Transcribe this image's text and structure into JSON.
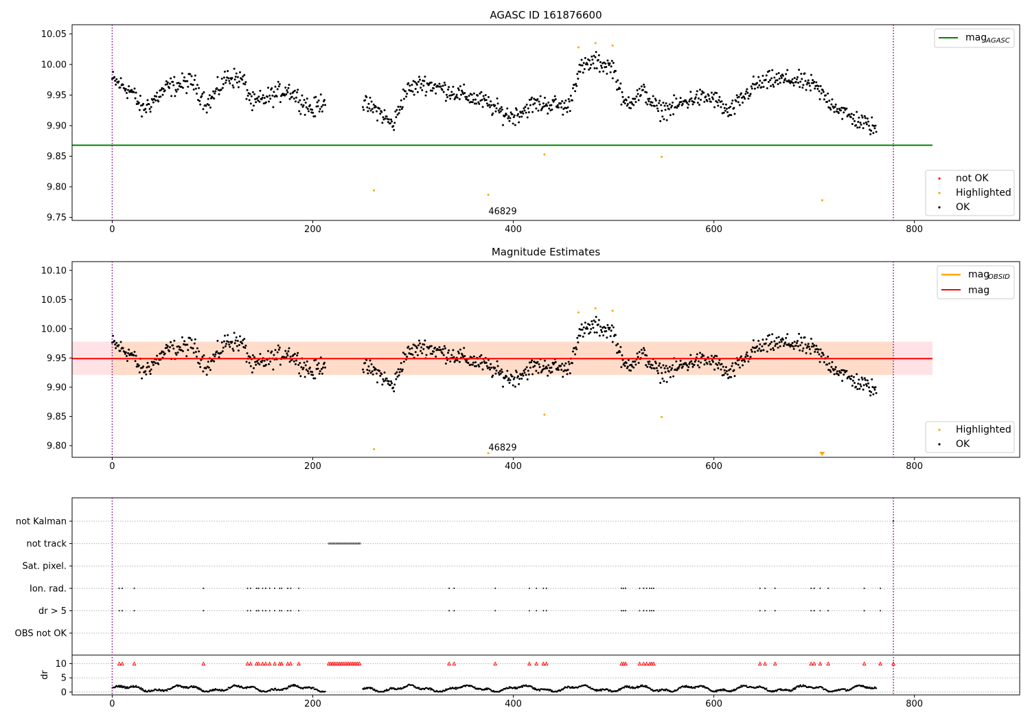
{
  "chart_data": [
    {
      "type": "scatter",
      "title": "AGASC ID 161876600",
      "xlim": [
        -40,
        905
      ],
      "ylim": [
        9.745,
        10.065
      ],
      "x_ticks": [
        "0",
        "200",
        "400",
        "600",
        "800"
      ],
      "y_ticks": [
        "9.75",
        "9.80",
        "9.85",
        "9.90",
        "9.95",
        "10.00",
        "10.05"
      ],
      "reference_lines": [
        {
          "name": "mag_AGASC",
          "legend_label": "mag",
          "legend_sub": "AGASC",
          "y": 9.868,
          "x_range": [
            -40,
            818
          ],
          "color": "#008000"
        }
      ],
      "vertical_lines": {
        "x": [
          0,
          779
        ],
        "color": "#800080",
        "style": "dotted"
      },
      "series": [
        {
          "name": "not OK",
          "color": "#ff0000",
          "points": []
        },
        {
          "name": "Highlighted",
          "color": "#ffa500",
          "points": [
            [
              261,
              9.794
            ],
            [
              375,
              9.787
            ],
            [
              431,
              9.853
            ],
            [
              465,
              10.028
            ],
            [
              482,
              10.035
            ],
            [
              499,
              10.031
            ],
            [
              548,
              9.849
            ],
            [
              708,
              9.778
            ]
          ]
        },
        {
          "name": "OK",
          "color": "#000000",
          "note_points": "~760 observations, approximated"
        }
      ],
      "annotations": [
        {
          "text": "46829",
          "x": 375,
          "y": 9.757
        }
      ],
      "legends": {
        "line": "top-right",
        "points": "bottom-right"
      },
      "ok_segments": [
        {
          "start": 0,
          "end": 213,
          "anchors": [
            [
              0,
              9.975
            ],
            [
              20,
              9.955
            ],
            [
              30,
              9.925
            ],
            [
              55,
              9.962
            ],
            [
              80,
              9.972
            ],
            [
              95,
              9.935
            ],
            [
              115,
              9.98
            ],
            [
              130,
              9.975
            ],
            [
              140,
              9.935
            ],
            [
              175,
              9.96
            ],
            [
              200,
              9.925
            ],
            [
              213,
              9.945
            ]
          ],
          "noise": 0.014
        },
        {
          "start": 250,
          "end": 762,
          "anchors": [
            [
              250,
              9.935
            ],
            [
              265,
              9.925
            ],
            [
              280,
              9.9
            ],
            [
              292,
              9.955
            ],
            [
              310,
              9.97
            ],
            [
              340,
              9.955
            ],
            [
              370,
              9.94
            ],
            [
              390,
              9.92
            ],
            [
              400,
              9.915
            ],
            [
              420,
              9.935
            ],
            [
              440,
              9.935
            ],
            [
              455,
              9.93
            ],
            [
              465,
              9.99
            ],
            [
              480,
              10.005
            ],
            [
              500,
              9.995
            ],
            [
              510,
              9.935
            ],
            [
              530,
              9.955
            ],
            [
              545,
              9.925
            ],
            [
              560,
              9.93
            ],
            [
              580,
              9.945
            ],
            [
              600,
              9.945
            ],
            [
              615,
              9.92
            ],
            [
              640,
              9.965
            ],
            [
              660,
              9.975
            ],
            [
              680,
              9.975
            ],
            [
              700,
              9.965
            ],
            [
              715,
              9.94
            ],
            [
              735,
              9.915
            ],
            [
              762,
              9.895
            ]
          ],
          "noise": 0.013
        }
      ]
    },
    {
      "type": "scatter",
      "title": "Magnitude Estimates",
      "xlim": [
        -40,
        905
      ],
      "ylim": [
        9.78,
        10.115
      ],
      "x_ticks": [
        "0",
        "200",
        "400",
        "600",
        "800"
      ],
      "y_ticks": [
        "9.80",
        "9.85",
        "9.90",
        "9.95",
        "10.00",
        "10.05",
        "10.10"
      ],
      "reference_lines": [
        {
          "name": "mag_OBSID",
          "legend_label": "mag",
          "legend_sub": "OBSID",
          "color": "#ffa500"
        },
        {
          "name": "mag",
          "legend_label": "mag",
          "y": 9.949,
          "x_range": [
            -40,
            818
          ],
          "color": "#ff0000"
        }
      ],
      "band": {
        "y_low": 9.921,
        "y_high": 9.978,
        "x_range": [
          -40,
          818
        ],
        "inner_x_range": [
          0,
          779
        ],
        "outer_color": "#ffe2e6",
        "inner_color": "#ffdcc9"
      },
      "vertical_lines": {
        "x": [
          0,
          779
        ],
        "color": "#800080",
        "style": "dotted"
      },
      "series": [
        {
          "name": "Highlighted",
          "color": "#ffa500",
          "points": [
            [
              261,
              9.794
            ],
            [
              375,
              9.787
            ],
            [
              431,
              9.853
            ],
            [
              465,
              10.028
            ],
            [
              482,
              10.035
            ],
            [
              499,
              10.031
            ],
            [
              548,
              9.849
            ]
          ]
        },
        {
          "name": "OK",
          "color": "#000000"
        }
      ],
      "markers": [
        {
          "shape": "triangle-down",
          "x": 708,
          "color": "#ffa500"
        }
      ],
      "annotations": [
        {
          "text": "46829",
          "x": 375,
          "y": 9.79
        }
      ],
      "legends": {
        "line": "top-right",
        "points": "bottom-right"
      }
    },
    {
      "type": "scatter",
      "xlim": [
        -40,
        905
      ],
      "category_axis": [
        "not Kalman",
        "not track",
        "Sat. pixel.",
        "Ion. rad.",
        "dr > 5",
        "OBS not OK"
      ],
      "flag_series": {
        "not_track": [
          216,
          248
        ],
        "ion_rad": [
          7,
          10,
          22,
          91,
          135,
          138,
          144,
          146,
          150,
          153,
          157,
          162,
          167,
          169,
          175,
          178,
          186,
          336,
          341,
          382,
          416,
          423,
          430,
          433,
          508,
          510,
          512,
          526,
          530,
          533,
          536,
          538,
          540,
          646,
          651,
          661,
          697,
          700,
          706,
          714,
          750,
          766
        ]
      },
      "vertical_lines": {
        "x": [
          0,
          779
        ],
        "color": "#800080",
        "style": "dotted"
      }
    },
    {
      "type": "scatter",
      "ylabel": "dr",
      "xlim": [
        -40,
        905
      ],
      "ylim": [
        -1,
        13
      ],
      "x_ticks": [
        "0",
        "200",
        "400",
        "600",
        "800"
      ],
      "y_ticks": [
        "0",
        "5",
        "10"
      ],
      "flag_markers": {
        "y": 10,
        "color": "#ff0000",
        "shape": "triangle-up"
      },
      "vertical_lines": {
        "x": [
          0,
          779
        ],
        "color": "#800080",
        "style": "dotted"
      }
    }
  ]
}
